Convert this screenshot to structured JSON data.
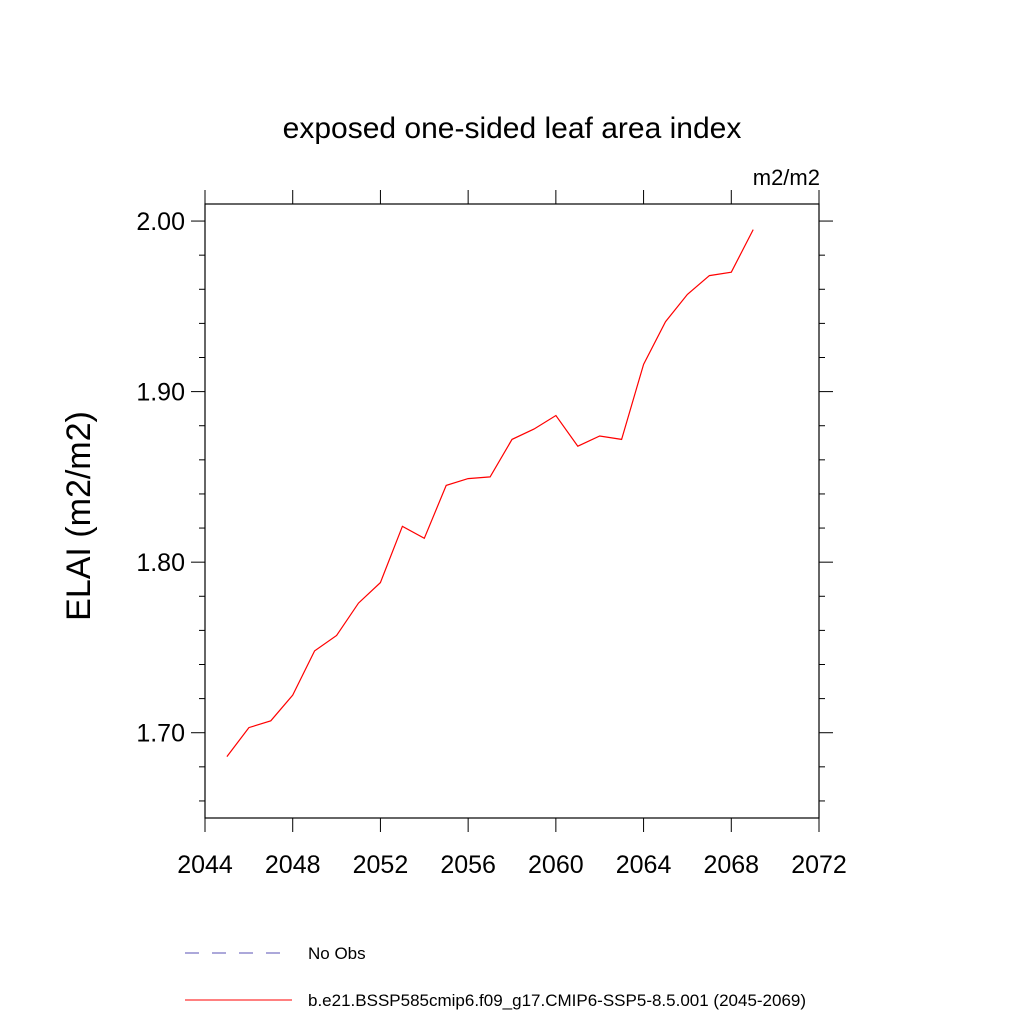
{
  "chart_data": {
    "type": "line",
    "title": "exposed one-sided leaf area index",
    "units": "m2/m2",
    "xlabel": "",
    "ylabel": "ELAI  (m2/m2)",
    "xlim": [
      2044,
      2072
    ],
    "ylim": [
      1.65,
      2.01
    ],
    "x_ticks": [
      2044,
      2048,
      2052,
      2056,
      2060,
      2064,
      2068,
      2072
    ],
    "x_tick_labels": [
      "2044",
      "2048",
      "2052",
      "2056",
      "2060",
      "2064",
      "2068",
      "2072"
    ],
    "y_ticks": [
      1.7,
      1.8,
      1.9,
      2.0
    ],
    "y_tick_labels": [
      "1.70",
      "1.80",
      "1.90",
      "2.00"
    ],
    "grid": false,
    "legend_position": "bottom",
    "series": [
      {
        "name": "b.e21.BSSP585cmip6.f09_g17.CMIP6-SSP5-8.5.001 (2045-2069)",
        "color": "#ff0000",
        "style": "solid",
        "x": [
          2045,
          2046,
          2047,
          2048,
          2049,
          2050,
          2051,
          2052,
          2053,
          2054,
          2055,
          2056,
          2057,
          2058,
          2059,
          2060,
          2061,
          2062,
          2063,
          2064,
          2065,
          2066,
          2067,
          2068,
          2069
        ],
        "values": [
          1.686,
          1.703,
          1.707,
          1.722,
          1.748,
          1.757,
          1.776,
          1.788,
          1.821,
          1.814,
          1.845,
          1.849,
          1.85,
          1.872,
          1.878,
          1.886,
          1.868,
          1.874,
          1.872,
          1.916,
          1.941,
          1.957,
          1.968,
          1.97,
          1.995
        ]
      }
    ],
    "legend": [
      {
        "label": "No Obs",
        "color": "#5a50b4",
        "style": "dashed"
      },
      {
        "label": "b.e21.BSSP585cmip6.f09_g17.CMIP6-SSP5-8.5.001 (2045-2069)",
        "color": "#ff0000",
        "style": "solid"
      }
    ]
  }
}
